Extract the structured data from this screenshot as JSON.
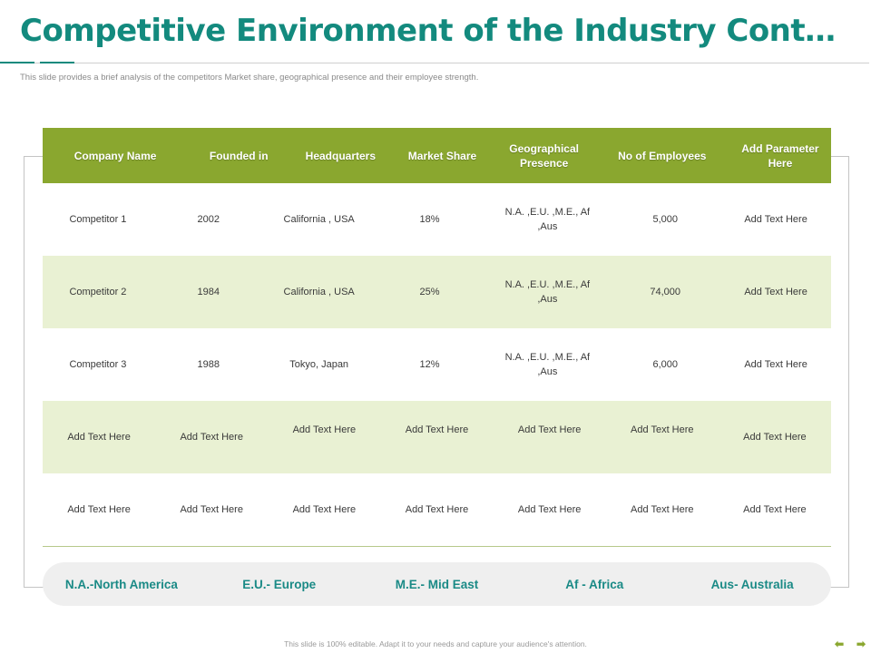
{
  "slide": {
    "title": "Competitive Environment of the Industry Cont…",
    "subtitle": "This slide provides a brief analysis of the competitors Market share, geographical presence and their employee strength.",
    "footer": "This slide is 100% editable. Adapt it to your needs and capture your audience's attention.",
    "accent_color": "#138a7e",
    "header_color": "#8aa72f",
    "alt_row_color": "#e9f1d3"
  },
  "table": {
    "columns": [
      "Company Name",
      "Founded in",
      "Headquarters",
      "Market Share",
      "Geographical Presence",
      "No of Employees",
      "Add Parameter Here"
    ],
    "rows": [
      [
        "Competitor 1",
        "2002",
        "California , USA",
        "18%",
        "N.A. ,E.U. ,M.E., Af ,Aus",
        "5,000",
        "Add Text Here"
      ],
      [
        "Competitor 2",
        "1984",
        "California , USA",
        "25%",
        "N.A. ,E.U. ,M.E., Af ,Aus",
        "74,000",
        "Add Text Here"
      ],
      [
        "Competitor 3",
        "1988",
        "Tokyo, Japan",
        "12%",
        "N.A. ,E.U. ,M.E., Af ,Aus",
        "6,000",
        "Add Text Here"
      ],
      [
        "Add Text Here",
        "Add Text Here",
        "Add Text Here",
        "Add Text Here",
        "Add Text Here",
        "Add Text Here",
        "Add Text Here"
      ],
      [
        "Add Text Here",
        "Add Text Here",
        "Add Text Here",
        "Add Text Here",
        "Add Text Here",
        "Add Text Here",
        "Add Text Here"
      ]
    ]
  },
  "legend": [
    "N.A.-North America",
    "E.U.- Europe",
    "M.E.- Mid East",
    "Af - Africa",
    "Aus- Australia"
  ],
  "nav": {
    "prev_icon": "arrow-left-icon",
    "next_icon": "arrow-right-icon",
    "prev_glyph": "⬅",
    "next_glyph": "➡"
  }
}
